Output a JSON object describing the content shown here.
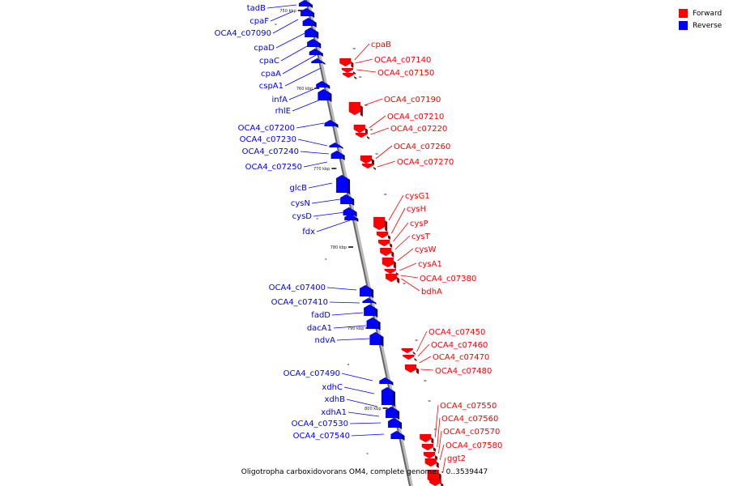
{
  "legend": {
    "forward_label": "Forward",
    "reverse_label": "Reverse",
    "forward_color": "#ff0000",
    "reverse_color": "#0000ff"
  },
  "caption": "Oligotropha carboxidovorans OM4, complete genome. - 0..3539447",
  "axis": {
    "ticks": [
      {
        "label": "750 kbp"
      },
      {
        "label": "760 kbp"
      },
      {
        "label": "770 kbp"
      },
      {
        "label": "780 kbp"
      },
      {
        "label": "790 kbp"
      },
      {
        "label": "800 kbp"
      }
    ]
  },
  "genes": {
    "reverse": [
      {
        "name": "tadB"
      },
      {
        "name": "cpaF"
      },
      {
        "name": "OCA4_c07090"
      },
      {
        "name": "cpaD"
      },
      {
        "name": "cpaC"
      },
      {
        "name": "cpaA"
      },
      {
        "name": "cspA1"
      },
      {
        "name": "infA"
      },
      {
        "name": "rhlE"
      },
      {
        "name": "OCA4_c07200"
      },
      {
        "name": "OCA4_c07230"
      },
      {
        "name": "OCA4_c07240"
      },
      {
        "name": "OCA4_c07250"
      },
      {
        "name": "glcB"
      },
      {
        "name": "cysN"
      },
      {
        "name": "cysD"
      },
      {
        "name": "fdx"
      },
      {
        "name": "OCA4_c07400"
      },
      {
        "name": "OCA4_c07410"
      },
      {
        "name": "fadD"
      },
      {
        "name": "dacA1"
      },
      {
        "name": "ndvA"
      },
      {
        "name": "OCA4_c07490"
      },
      {
        "name": "xdhC"
      },
      {
        "name": "xdhB"
      },
      {
        "name": "xdhA1"
      },
      {
        "name": "OCA4_c07530"
      },
      {
        "name": "OCA4_c07540"
      }
    ],
    "forward": [
      {
        "name": "cpaB"
      },
      {
        "name": "OCA4_c07140"
      },
      {
        "name": "OCA4_c07150"
      },
      {
        "name": "OCA4_c07190"
      },
      {
        "name": "OCA4_c07210"
      },
      {
        "name": "OCA4_c07220"
      },
      {
        "name": "OCA4_c07260"
      },
      {
        "name": "OCA4_c07270"
      },
      {
        "name": "cysG1"
      },
      {
        "name": "cysH"
      },
      {
        "name": "cysP"
      },
      {
        "name": "cysT"
      },
      {
        "name": "cysW"
      },
      {
        "name": "cysA1"
      },
      {
        "name": "OCA4_c07380"
      },
      {
        "name": "bdhA"
      },
      {
        "name": "OCA4_c07450"
      },
      {
        "name": "OCA4_c07460"
      },
      {
        "name": "OCA4_c07470"
      },
      {
        "name": "OCA4_c07480"
      },
      {
        "name": "OCA4_c07550"
      },
      {
        "name": "OCA4_c07560"
      },
      {
        "name": "OCA4_c07570"
      },
      {
        "name": "OCA4_c07580"
      },
      {
        "name": "ggt2"
      }
    ]
  }
}
